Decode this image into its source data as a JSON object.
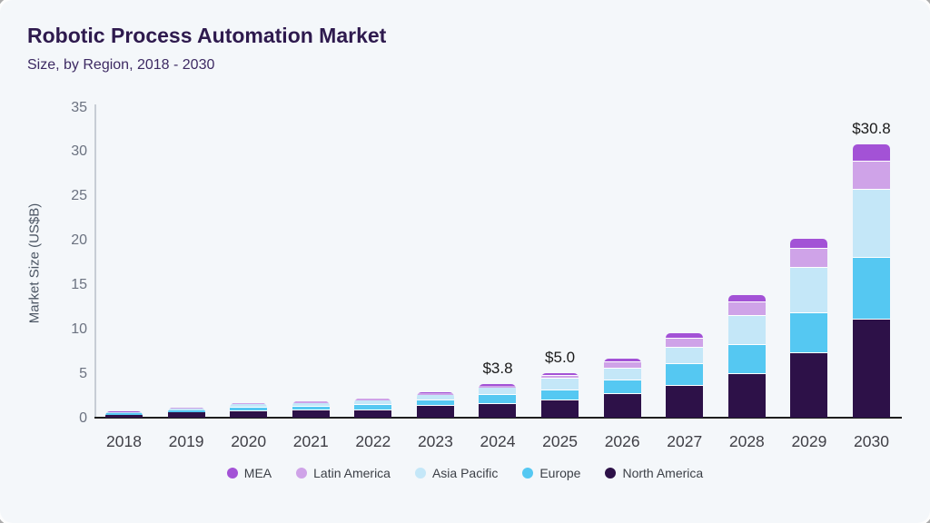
{
  "card": {
    "title": "Robotic Process Automation Market",
    "subtitle": "Size, by Region, 2018 - 2030"
  },
  "chart_data": {
    "type": "bar",
    "stacked": true,
    "title": "Robotic Process Automation Market",
    "subtitle": "Size, by Region, 2018 - 2030",
    "xlabel": "",
    "ylabel": "Market Size (US$B)",
    "ylim": [
      0,
      35
    ],
    "yticks": [
      0,
      5,
      10,
      15,
      20,
      25,
      30,
      35
    ],
    "grid": false,
    "legend_position": "bottom",
    "categories": [
      "2018",
      "2019",
      "2020",
      "2021",
      "2022",
      "2023",
      "2024",
      "2025",
      "2026",
      "2027",
      "2028",
      "2029",
      "2030"
    ],
    "series": [
      {
        "name": "North America",
        "color": "#2d1148",
        "values": [
          0.34,
          0.58,
          0.7,
          0.78,
          0.85,
          1.28,
          1.55,
          1.9,
          2.7,
          3.55,
          4.95,
          7.3,
          11.1
        ]
      },
      {
        "name": "Europe",
        "color": "#55c8f2",
        "values": [
          0.15,
          0.24,
          0.45,
          0.5,
          0.6,
          0.68,
          1.05,
          1.15,
          1.5,
          2.45,
          3.25,
          4.5,
          6.9
        ]
      },
      {
        "name": "Asia Pacific",
        "color": "#c4e7f8",
        "values": [
          0.13,
          0.22,
          0.38,
          0.4,
          0.5,
          0.6,
          0.75,
          1.4,
          1.35,
          1.9,
          3.3,
          5.1,
          7.7
        ]
      },
      {
        "name": "Latin America",
        "color": "#cfa3e8",
        "values": [
          0.04,
          0.08,
          0.07,
          0.12,
          0.17,
          0.18,
          0.25,
          0.3,
          0.65,
          1.05,
          1.45,
          2.1,
          3.2
        ]
      },
      {
        "name": "MEA",
        "color": "#a352d6",
        "values": [
          0.03,
          0.05,
          0.05,
          0.08,
          0.08,
          0.08,
          0.2,
          0.27,
          0.5,
          0.6,
          0.85,
          1.2,
          1.9
        ]
      }
    ],
    "totals_labels": {
      "2024": "$3.8",
      "2025": "$5.0",
      "2030": "$30.8"
    },
    "legend_order": [
      "MEA",
      "Latin America",
      "Asia Pacific",
      "Europe",
      "North America"
    ]
  }
}
